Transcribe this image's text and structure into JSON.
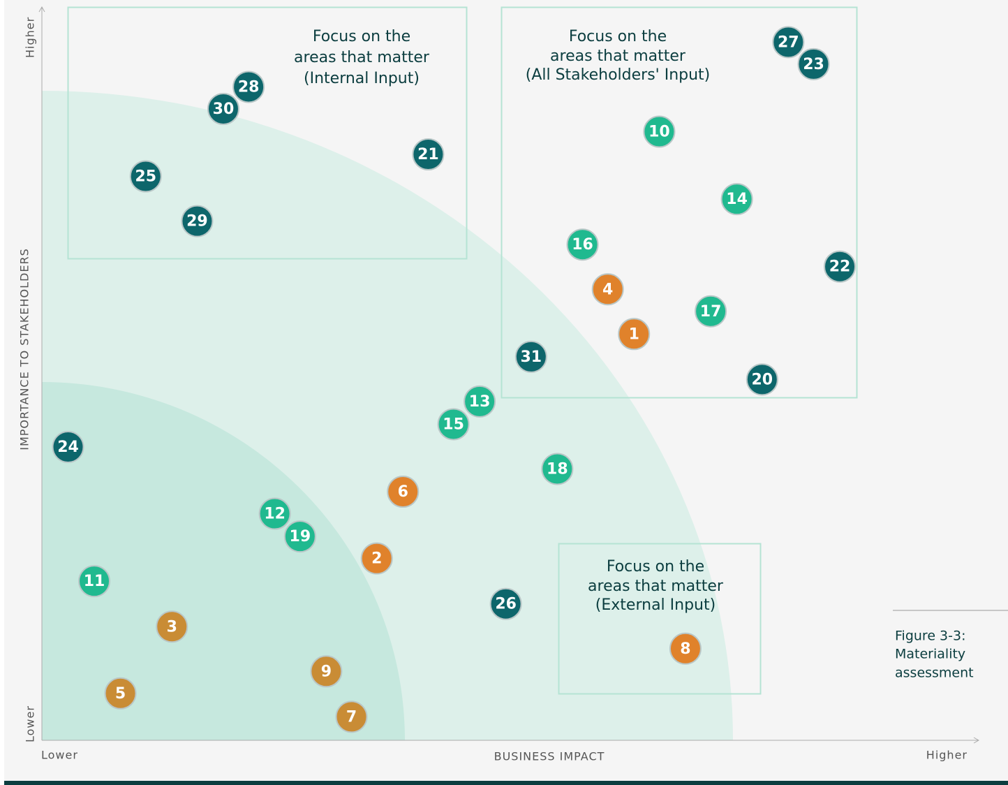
{
  "chart_data": {
    "type": "scatter",
    "x_label": "BUSINESS IMPACT",
    "y_label": "IMPORTANCE TO STAKEHOLDERS",
    "x_low": "Lower",
    "x_high": "Higher",
    "y_low": "Lower",
    "y_high": "Higher",
    "xlim": [
      0,
      100
    ],
    "ylim": [
      0,
      100
    ],
    "annotations": [
      [
        "Focus on the",
        "areas that matter",
        "(Internal Input)"
      ],
      [
        "Focus on the",
        "areas that matter",
        "(All Stakeholders' Input)"
      ],
      [
        "Focus on the",
        "areas that matter",
        "(External Input)"
      ]
    ],
    "caption": [
      "Figure 3-3:",
      "Materiality",
      "assessment"
    ],
    "points": [
      {
        "label": "27",
        "x": 79.8,
        "y": 95.2,
        "color": "#0d666b"
      },
      {
        "label": "23",
        "x": 82.5,
        "y": 92.2,
        "color": "#0d666b"
      },
      {
        "label": "28",
        "x": 22.1,
        "y": 89.1,
        "color": "#0d666b"
      },
      {
        "label": "30",
        "x": 19.4,
        "y": 86.1,
        "color": "#0d666b"
      },
      {
        "label": "21",
        "x": 41.3,
        "y": 79.9,
        "color": "#0d666b"
      },
      {
        "label": "25",
        "x": 11.1,
        "y": 76.9,
        "color": "#0d666b"
      },
      {
        "label": "29",
        "x": 16.6,
        "y": 70.8,
        "color": "#0d666b"
      },
      {
        "label": "10",
        "x": 66.0,
        "y": 83.0,
        "color": "#20b98f"
      },
      {
        "label": "14",
        "x": 74.3,
        "y": 73.8,
        "color": "#20b98f"
      },
      {
        "label": "16",
        "x": 57.8,
        "y": 67.6,
        "color": "#20b98f"
      },
      {
        "label": "22",
        "x": 85.3,
        "y": 64.6,
        "color": "#0d666b"
      },
      {
        "label": "4",
        "x": 60.5,
        "y": 61.5,
        "color": "#e0822b"
      },
      {
        "label": "17",
        "x": 71.5,
        "y": 58.5,
        "color": "#20b98f"
      },
      {
        "label": "1",
        "x": 63.3,
        "y": 55.4,
        "color": "#e0822b"
      },
      {
        "label": "31",
        "x": 52.3,
        "y": 52.3,
        "color": "#0d666b"
      },
      {
        "label": "20",
        "x": 77.0,
        "y": 49.2,
        "color": "#0d666b"
      },
      {
        "label": "13",
        "x": 46.8,
        "y": 46.2,
        "color": "#20b98f"
      },
      {
        "label": "15",
        "x": 44.0,
        "y": 43.1,
        "color": "#20b98f"
      },
      {
        "label": "24",
        "x": 2.8,
        "y": 40.0,
        "color": "#0d666b"
      },
      {
        "label": "18",
        "x": 55.1,
        "y": 37.0,
        "color": "#20b98f"
      },
      {
        "label": "6",
        "x": 38.6,
        "y": 33.9,
        "color": "#e0822b"
      },
      {
        "label": "12",
        "x": 24.9,
        "y": 30.9,
        "color": "#20b98f"
      },
      {
        "label": "19",
        "x": 27.6,
        "y": 27.8,
        "color": "#20b98f"
      },
      {
        "label": "2",
        "x": 35.8,
        "y": 24.8,
        "color": "#e0822b"
      },
      {
        "label": "11",
        "x": 5.6,
        "y": 21.7,
        "color": "#20b98f"
      },
      {
        "label": "26",
        "x": 49.6,
        "y": 18.6,
        "color": "#0d666b"
      },
      {
        "label": "3",
        "x": 13.9,
        "y": 15.5,
        "color": "#c98c35"
      },
      {
        "label": "8",
        "x": 68.8,
        "y": 12.5,
        "color": "#e0822b"
      },
      {
        "label": "9",
        "x": 30.4,
        "y": 9.4,
        "color": "#c98c35"
      },
      {
        "label": "5",
        "x": 8.4,
        "y": 6.4,
        "color": "#c98c35"
      },
      {
        "label": "7",
        "x": 33.1,
        "y": 3.2,
        "color": "#c98c35"
      }
    ]
  }
}
